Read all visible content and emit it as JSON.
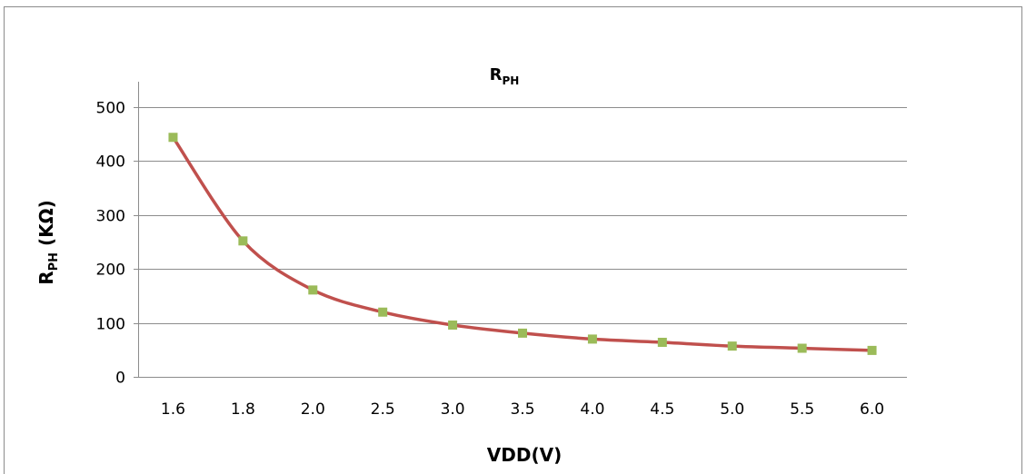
{
  "chart_data": {
    "type": "line",
    "title": "R",
    "title_subscript": "PH",
    "xlabel": "VDD(V)",
    "ylabel": "R",
    "ylabel_subscript": "PH",
    "ylabel_suffix": " (KΩ)",
    "categories": [
      "1.6",
      "1.8",
      "2.0",
      "2.5",
      "3.0",
      "3.5",
      "4.0",
      "4.5",
      "5.0",
      "5.5",
      "6.0"
    ],
    "series": [
      {
        "values": [
          444,
          252,
          161,
          120,
          96,
          81,
          70,
          64,
          57,
          53,
          49
        ],
        "line_color": "#c0504d",
        "marker_color": "#9bbb59",
        "marker": "square"
      }
    ],
    "ylim": [
      0,
      500
    ],
    "yticks": [
      0,
      100,
      200,
      300,
      400,
      500
    ],
    "grid": true,
    "legend": "none"
  }
}
